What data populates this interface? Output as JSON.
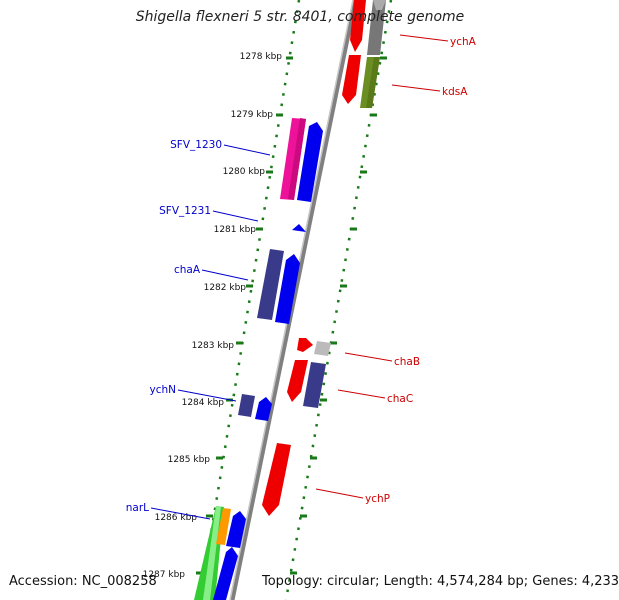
{
  "title": "Shigella flexneri 5 str. 8401, complete genome",
  "accession": "Accession: NC_008258",
  "topology": "Topology: circular; Length: 4,574,284 bp; Genes: 4,233",
  "kbp_labels": [
    "1278 kbp",
    "1279 kbp",
    "1280 kbp",
    "1281 kbp",
    "1282 kbp",
    "1283 kbp",
    "1284 kbp",
    "1285 kbp",
    "1286 kbp",
    "1287 kbp"
  ],
  "gene_labels": {
    "left": [
      "SFV_1230",
      "SFV_1231",
      "chaA",
      "ychN",
      "narL"
    ],
    "right": [
      "ychA",
      "kdsA",
      "chaB",
      "chaC",
      "ychP"
    ]
  },
  "colors": {
    "left_label": "#0000cc",
    "right_label": "#cc0000",
    "tick": "#1a7a1a",
    "backbone": "#808080",
    "blue": "#0000ee",
    "red": "#ee0000",
    "magenta": "#ee1199",
    "navy": "#3a3a8a",
    "olive": "#6b8e23",
    "gray": "#777777",
    "lightgray": "#bbbbbb",
    "green": "#33cc33",
    "orange": "#ff9900"
  }
}
